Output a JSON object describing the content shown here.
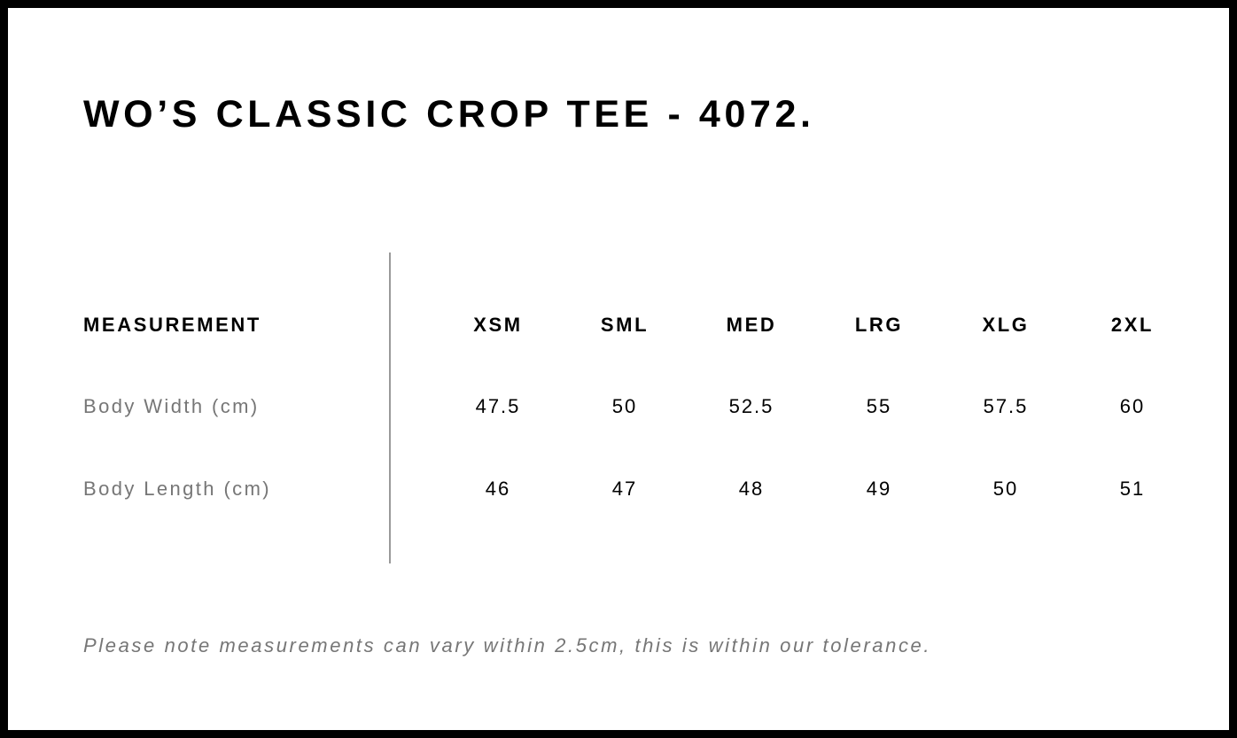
{
  "title": "WO’S CLASSIC CROP TEE - 4072.",
  "table": {
    "header": "MEASUREMENT",
    "sizes": [
      "XSM",
      "SML",
      "MED",
      "LRG",
      "XLG",
      "2XL"
    ],
    "rows": [
      {
        "label": "Body Width (cm)",
        "values": [
          "47.5",
          "50",
          "52.5",
          "55",
          "57.5",
          "60"
        ]
      },
      {
        "label": "Body Length (cm)",
        "values": [
          "46",
          "47",
          "48",
          "49",
          "50",
          "51"
        ]
      }
    ]
  },
  "note": "Please note measurements can vary within 2.5cm, this is within our tolerance."
}
